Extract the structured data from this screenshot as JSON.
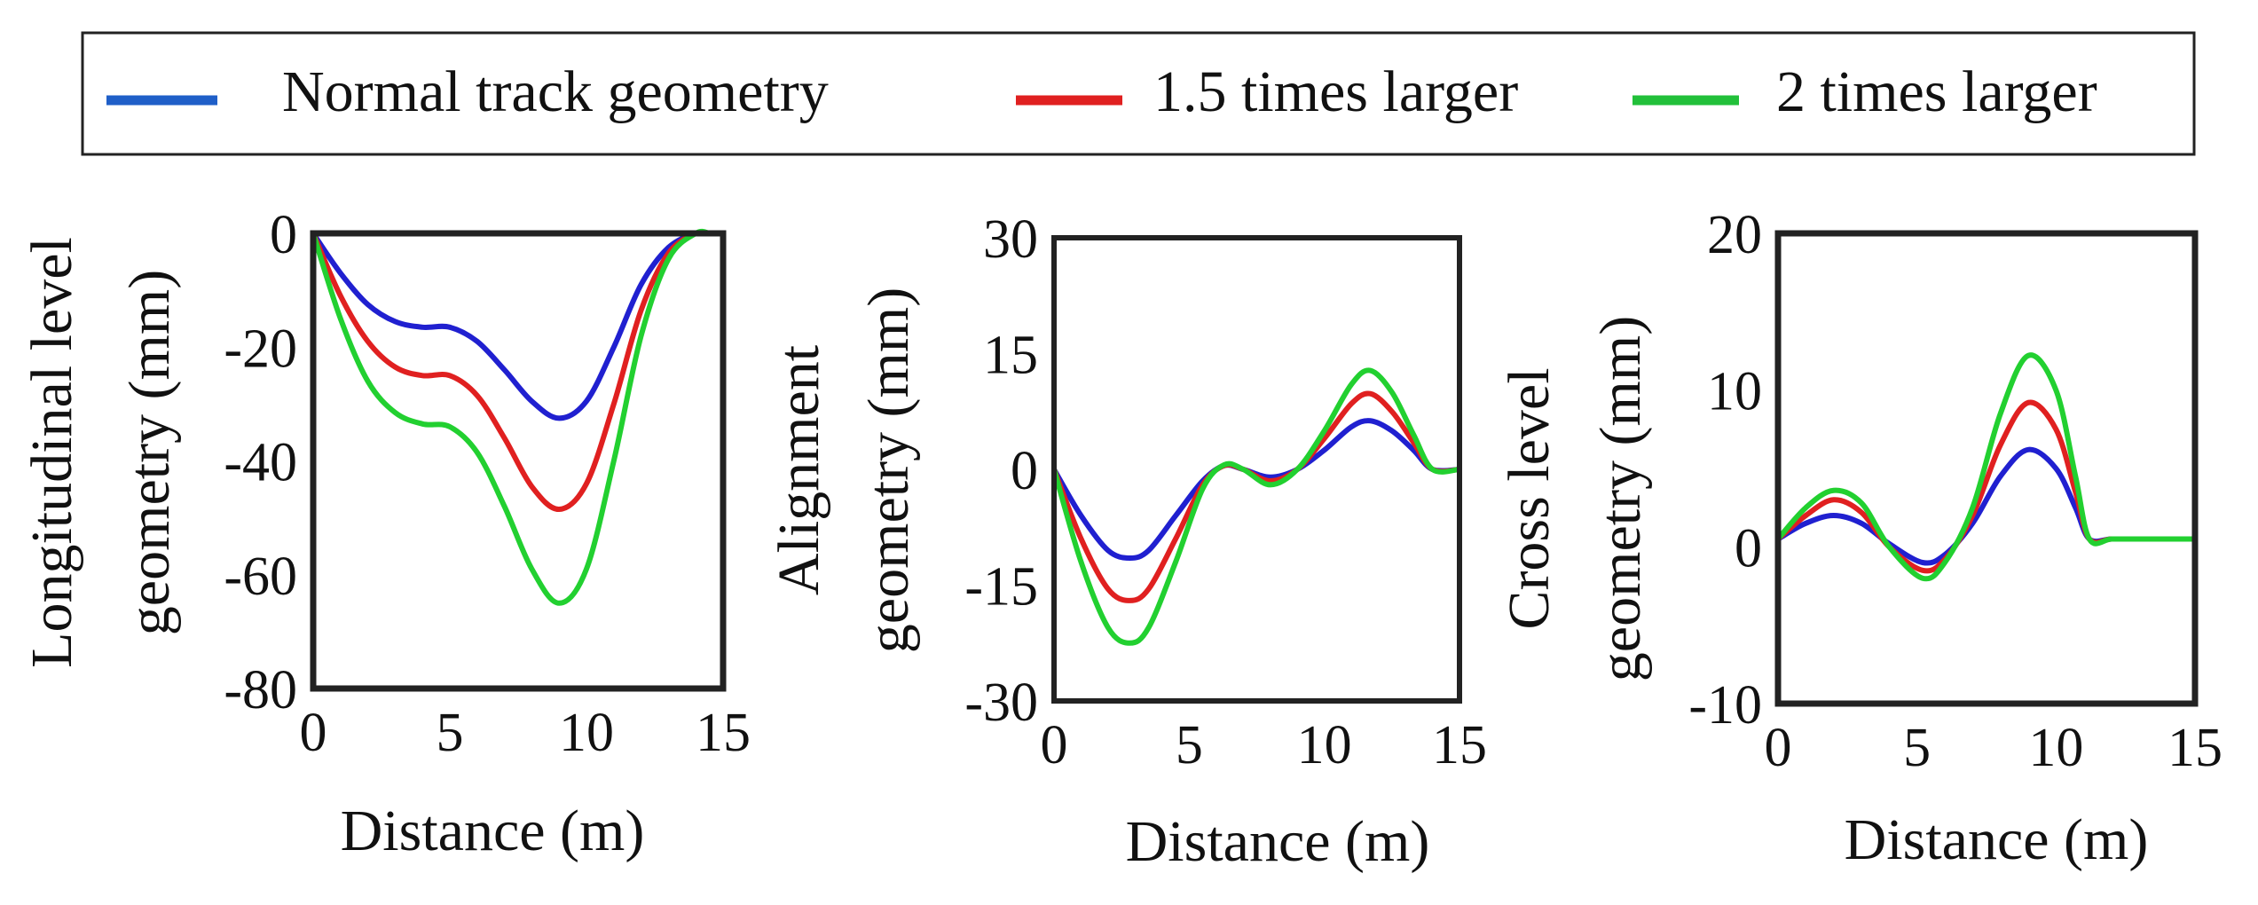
{
  "legend": {
    "entries": [
      {
        "label": "Normal track geometry",
        "color": "#1f5fc8"
      },
      {
        "label": "1.5 times larger",
        "color": "#e02020"
      },
      {
        "label": "2 times larger",
        "color": "#22c03a"
      }
    ]
  },
  "chart_data": [
    {
      "type": "line",
      "xlabel": "Distance (m)",
      "ylabel_lines": [
        "Longitudinal level",
        "geometry (mm)"
      ],
      "xlim": [
        0,
        15
      ],
      "ylim": [
        -80,
        0
      ],
      "xticks": [
        0,
        5,
        10,
        15
      ],
      "yticks": [
        0,
        -20,
        -40,
        -60,
        -80
      ],
      "grid": false,
      "series": [
        {
          "name": "Normal track geometry",
          "color": "#2020d0",
          "x": [
            0,
            1,
            2,
            3,
            4,
            5,
            6,
            7,
            8,
            9,
            10,
            11,
            12,
            13,
            14,
            14.5
          ],
          "y": [
            0,
            -7,
            -12.5,
            -15.5,
            -16.5,
            -16.5,
            -19,
            -24,
            -29.5,
            -32.5,
            -29.5,
            -20,
            -9,
            -2.5,
            0,
            0
          ]
        },
        {
          "name": "1.5 times larger",
          "color": "#e02020",
          "x": [
            0,
            1,
            2,
            3,
            4,
            5,
            6,
            7,
            8,
            9,
            10,
            11,
            12,
            13,
            14,
            14.5
          ],
          "y": [
            0,
            -11,
            -19,
            -23.5,
            -25,
            -25,
            -28.5,
            -36,
            -44.5,
            -48.5,
            -44,
            -30,
            -13.5,
            -3.5,
            0,
            0
          ]
        },
        {
          "name": "2 times larger",
          "color": "#22d030",
          "x": [
            0,
            1,
            2,
            3,
            4,
            5,
            6,
            7,
            8,
            9,
            10,
            11,
            12,
            13,
            14,
            14.5
          ],
          "y": [
            0,
            -15,
            -26,
            -31.5,
            -33.5,
            -34,
            -38.5,
            -48,
            -59,
            -65,
            -59,
            -40,
            -18,
            -4.5,
            0,
            0
          ]
        }
      ]
    },
    {
      "type": "line",
      "xlabel": "Distance (m)",
      "ylabel_lines": [
        "Alignment",
        "geometry (mm)"
      ],
      "xlim": [
        0,
        15
      ],
      "ylim": [
        -30,
        30
      ],
      "xticks": [
        0,
        5,
        10,
        15
      ],
      "yticks": [
        30,
        15,
        0,
        -15,
        -30
      ],
      "grid": false,
      "series": [
        {
          "name": "Normal track geometry",
          "color": "#2020d0",
          "x": [
            0,
            1,
            2,
            2.8,
            3.5,
            4.5,
            5.5,
            6.3,
            7,
            8,
            9,
            10,
            11,
            11.7,
            12.5,
            13.3,
            14,
            15
          ],
          "y": [
            0,
            -6,
            -10.5,
            -11.5,
            -10.5,
            -6,
            -1.5,
            0.5,
            0,
            -1,
            0,
            2.5,
            5.5,
            6.3,
            5,
            2.5,
            0,
            0
          ]
        },
        {
          "name": "1.5 times larger",
          "color": "#e02020",
          "x": [
            0,
            1,
            2,
            2.8,
            3.5,
            4.5,
            5.5,
            6.3,
            7,
            8,
            9,
            10,
            11,
            11.7,
            12.5,
            13.3,
            14,
            15
          ],
          "y": [
            0,
            -9,
            -15.5,
            -17,
            -15.5,
            -9,
            -2,
            0.5,
            0,
            -1.5,
            0,
            4,
            8.5,
            9.8,
            7.5,
            3.5,
            0,
            0
          ]
        },
        {
          "name": "2 times larger",
          "color": "#22d030",
          "x": [
            0,
            1,
            2,
            2.8,
            3.5,
            4.5,
            5.5,
            6.3,
            7,
            8,
            9,
            10,
            11,
            11.7,
            12.5,
            13.3,
            14,
            15
          ],
          "y": [
            0,
            -12,
            -20.5,
            -22.5,
            -20.5,
            -12,
            -2.5,
            0.6,
            0,
            -2,
            0,
            5,
            11,
            12.8,
            10,
            4.5,
            0,
            0
          ]
        }
      ]
    },
    {
      "type": "line",
      "xlabel": "Distance (m)",
      "ylabel_lines": [
        "Cross level",
        "geometry (mm)"
      ],
      "xlim": [
        0,
        15
      ],
      "ylim": [
        -10,
        20
      ],
      "xticks": [
        0,
        5,
        10,
        15
      ],
      "yticks": [
        20,
        10,
        0,
        -10
      ],
      "grid": false,
      "series": [
        {
          "name": "Normal track geometry",
          "color": "#2020d0",
          "x": [
            0,
            1,
            2,
            3,
            4,
            5.2,
            6,
            7,
            8,
            9,
            10,
            10.7,
            11.2,
            12,
            13,
            14,
            15
          ],
          "y": [
            0.5,
            1.5,
            2,
            1.5,
            0.2,
            -1,
            -0.5,
            1.5,
            4.5,
            6.2,
            5,
            2.5,
            0.5,
            0.5,
            0.5,
            0.5,
            0.5
          ]
        },
        {
          "name": "1.5 times larger",
          "color": "#e02020",
          "x": [
            0,
            1,
            2,
            3,
            4,
            5.2,
            6,
            7,
            8,
            9,
            10,
            10.7,
            11.2,
            12,
            13,
            14,
            15
          ],
          "y": [
            0.5,
            2,
            3,
            2.2,
            0,
            -1.5,
            -0.8,
            2,
            6.5,
            9.2,
            7.5,
            3.5,
            0.5,
            0.5,
            0.5,
            0.5,
            0.5
          ]
        },
        {
          "name": "2 times larger",
          "color": "#22d030",
          "x": [
            0,
            1,
            2,
            3,
            4,
            5.2,
            6,
            7,
            8,
            9,
            10,
            10.7,
            11.2,
            12,
            13,
            14,
            15
          ],
          "y": [
            0.5,
            2.5,
            3.6,
            2.8,
            0,
            -2,
            -1,
            2.5,
            8.5,
            12.2,
            10,
            4.5,
            0.5,
            0.5,
            0.5,
            0.5,
            0.5
          ]
        }
      ]
    }
  ]
}
